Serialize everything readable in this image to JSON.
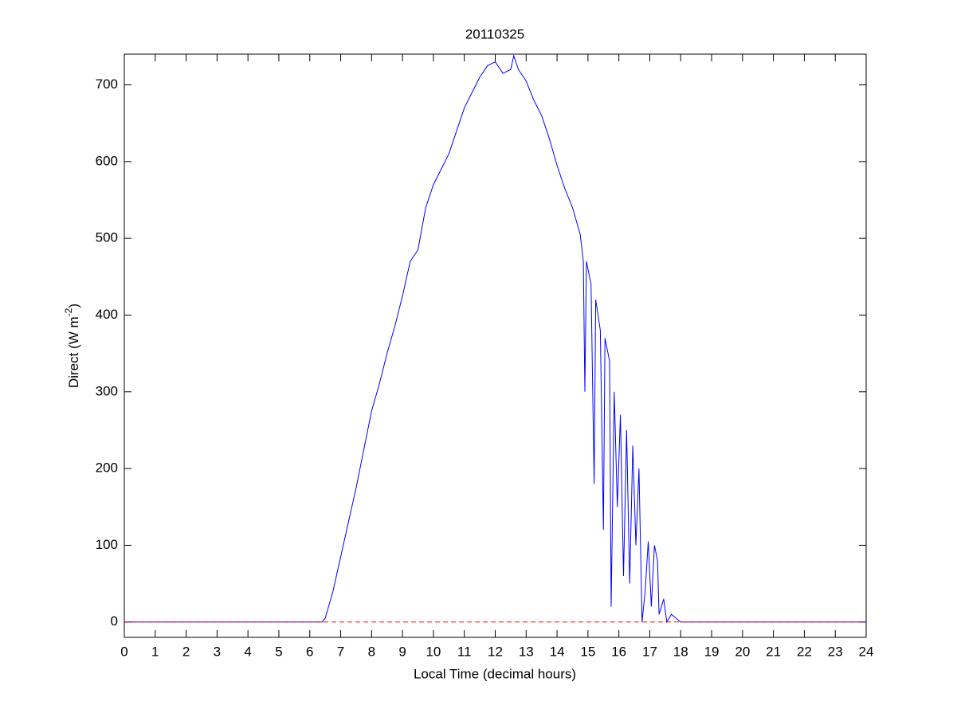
{
  "chart_data": {
    "type": "line",
    "title": "20110325",
    "xlabel": "Local Time (decimal hours)",
    "ylabel": {
      "text": "Direct (W m",
      "superscript": "-2",
      "suffix": ")"
    },
    "xlim": [
      0,
      24
    ],
    "ylim": [
      -20,
      740
    ],
    "xticks": [
      0,
      1,
      2,
      3,
      4,
      5,
      6,
      7,
      8,
      9,
      10,
      11,
      12,
      13,
      14,
      15,
      16,
      17,
      18,
      19,
      20,
      21,
      22,
      23,
      24
    ],
    "yticks": [
      0,
      100,
      200,
      300,
      400,
      500,
      600,
      700
    ],
    "series": [
      {
        "color": "#0000ff",
        "x": [
          0,
          6.4,
          6.5,
          6.75,
          7,
          7.25,
          7.5,
          7.75,
          8,
          8.25,
          8.5,
          8.75,
          9,
          9.25,
          9.5,
          9.75,
          10,
          10.25,
          10.5,
          10.75,
          11,
          11.25,
          11.5,
          11.75,
          12,
          12.25,
          12.5,
          12.6,
          12.75,
          13,
          13.25,
          13.5,
          13.75,
          14,
          14.25,
          14.5,
          14.75,
          14.85,
          14.9,
          14.95,
          15.1,
          15.2,
          15.25,
          15.4,
          15.5,
          15.55,
          15.7,
          15.75,
          15.85,
          15.95,
          16.05,
          16.15,
          16.25,
          16.35,
          16.45,
          16.55,
          16.65,
          16.75,
          16.85,
          16.95,
          17.05,
          17.15,
          17.25,
          17.3,
          17.45,
          17.55,
          17.7,
          17.85,
          18,
          24
        ],
        "values": [
          0,
          0,
          5,
          40,
          85,
          130,
          175,
          225,
          275,
          310,
          350,
          385,
          425,
          470,
          485,
          540,
          570,
          590,
          610,
          640,
          670,
          690,
          710,
          725,
          730,
          715,
          720,
          738,
          720,
          705,
          680,
          660,
          630,
          595,
          565,
          540,
          505,
          470,
          300,
          470,
          440,
          180,
          420,
          380,
          120,
          370,
          340,
          20,
          300,
          150,
          270,
          60,
          250,
          50,
          230,
          100,
          200,
          0,
          40,
          105,
          20,
          100,
          80,
          10,
          30,
          0,
          10,
          5,
          0,
          0
        ]
      },
      {
        "color": "#ff0000",
        "dashed": true,
        "x": [
          0,
          24
        ],
        "values": [
          0,
          0
        ]
      }
    ]
  }
}
